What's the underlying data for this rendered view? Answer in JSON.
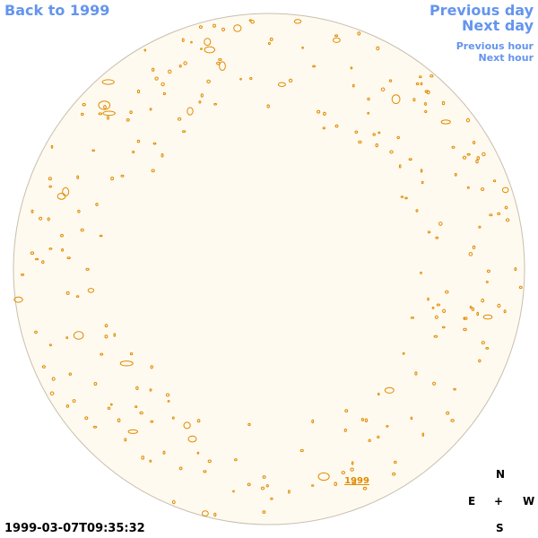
{
  "header": {
    "back_link": "Back to 1999",
    "previous_day": "Previous day",
    "next_day": "Next day",
    "previous_hour": "Previous hour",
    "next_hour": "Next hour"
  },
  "image": {
    "region_label": "1999"
  },
  "footer": {
    "timestamp": "1999-03-07T09:35:32"
  },
  "compass": {
    "north": "N",
    "east": "E",
    "center": "+",
    "west": "W",
    "south": "S"
  }
}
